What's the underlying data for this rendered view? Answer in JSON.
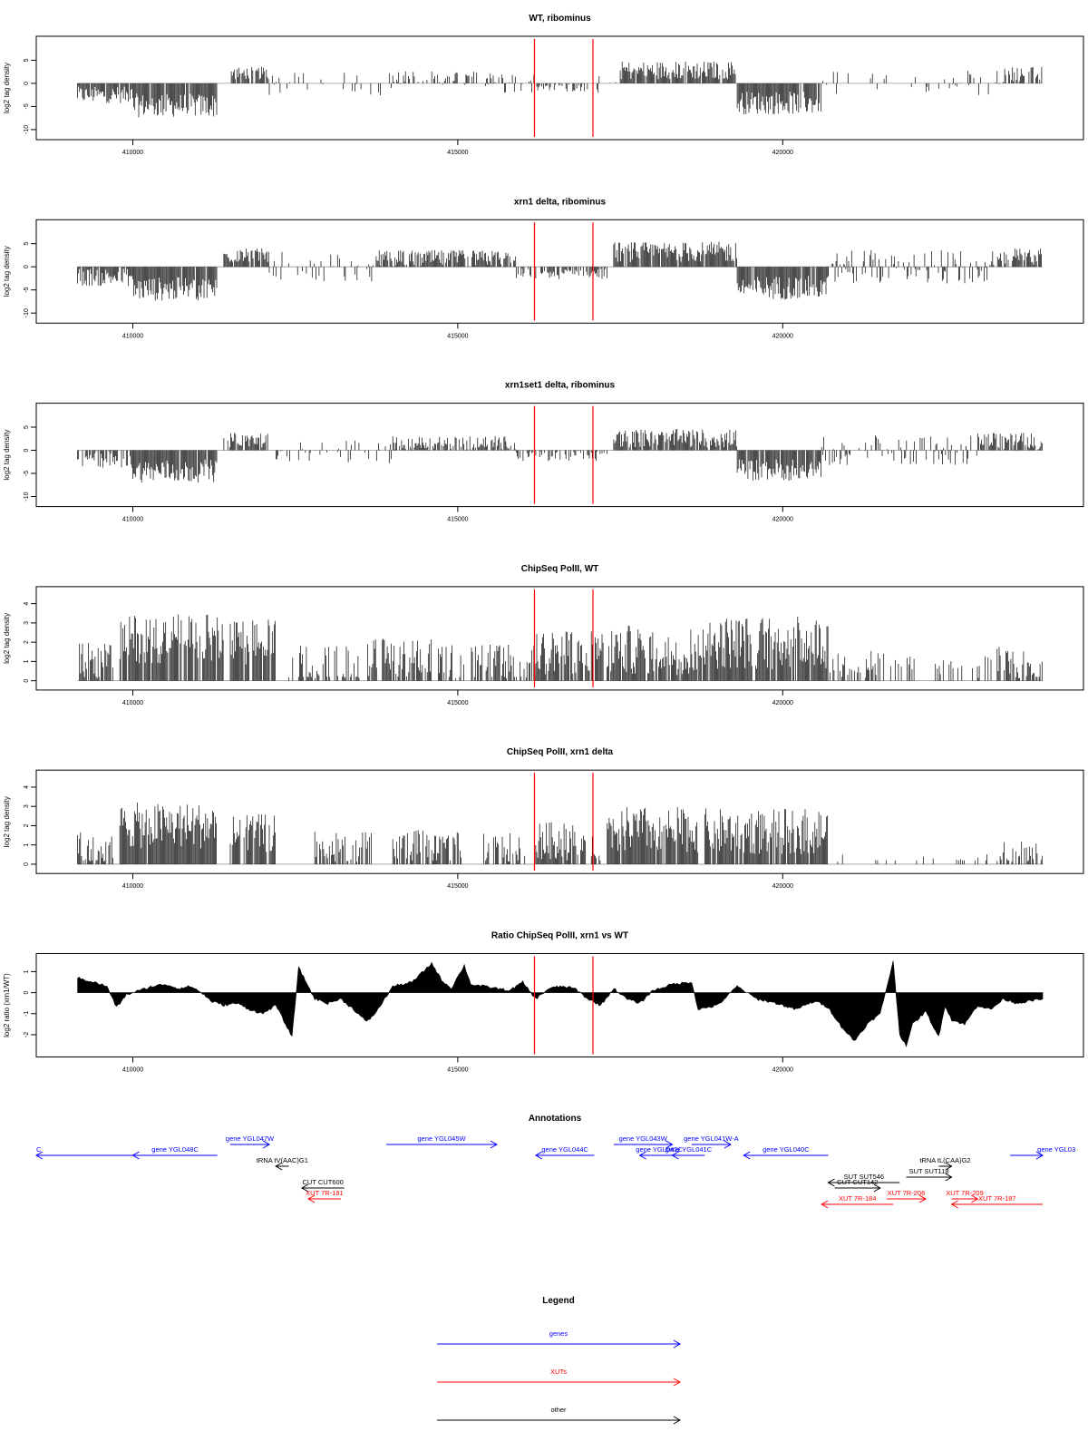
{
  "chart_data": [
    {
      "type": "bar",
      "title": "WT, ribominus",
      "ylabel": "log2 tag density",
      "xlim": [
        409100,
        424000
      ],
      "ylim": [
        -11,
        9
      ],
      "yticks": [
        -10,
        -5,
        0,
        5
      ],
      "xticks": [
        410000,
        415000,
        420000
      ],
      "grid": false,
      "markers": [
        416180,
        417080
      ],
      "segments": [
        {
          "start": 409150,
          "end": 410000,
          "mean": -2.5,
          "amp": 1.8,
          "p": 0.9
        },
        {
          "start": 410000,
          "end": 411300,
          "mean": -4.8,
          "amp": 2.6,
          "p": 0.95
        },
        {
          "start": 411500,
          "end": 412100,
          "mean": 2.2,
          "amp": 1.4,
          "p": 0.8
        },
        {
          "start": 412100,
          "end": 414000,
          "mean": 0,
          "amp": 1.6,
          "p": 0.18
        },
        {
          "start": 414000,
          "end": 415600,
          "mean": 1.0,
          "amp": 1.6,
          "p": 0.5
        },
        {
          "start": 415600,
          "end": 416200,
          "mean": 0,
          "amp": 1.2,
          "p": 0.3
        },
        {
          "start": 416200,
          "end": 417100,
          "mean": -0.8,
          "amp": 1.0,
          "p": 0.5
        },
        {
          "start": 417100,
          "end": 417500,
          "mean": 0,
          "amp": 1.2,
          "p": 0.2
        },
        {
          "start": 417500,
          "end": 419300,
          "mean": 2.8,
          "amp": 2.0,
          "p": 0.9
        },
        {
          "start": 419300,
          "end": 420600,
          "mean": -4.2,
          "amp": 2.5,
          "p": 0.95
        },
        {
          "start": 420600,
          "end": 423400,
          "mean": 0,
          "amp": 1.6,
          "p": 0.18
        },
        {
          "start": 423400,
          "end": 424000,
          "mean": 2.0,
          "amp": 1.6,
          "p": 0.6
        }
      ]
    },
    {
      "type": "bar",
      "title": "xrn1 delta, ribominus",
      "ylabel": "log2 tag density",
      "xlim": [
        409100,
        424000
      ],
      "ylim": [
        -11,
        9
      ],
      "yticks": [
        -10,
        -5,
        0,
        5
      ],
      "xticks": [
        410000,
        415000,
        420000
      ],
      "grid": false,
      "markers": [
        416180,
        417080
      ],
      "segments": [
        {
          "start": 409150,
          "end": 410000,
          "mean": -2.2,
          "amp": 2.0,
          "p": 0.9
        },
        {
          "start": 410000,
          "end": 411300,
          "mean": -4.8,
          "amp": 2.6,
          "p": 0.95
        },
        {
          "start": 411400,
          "end": 412100,
          "mean": 2.4,
          "amp": 1.6,
          "p": 0.85
        },
        {
          "start": 412100,
          "end": 413700,
          "mean": 0,
          "amp": 1.8,
          "p": 0.3
        },
        {
          "start": 413700,
          "end": 415900,
          "mean": 1.8,
          "amp": 1.8,
          "p": 0.85
        },
        {
          "start": 415900,
          "end": 417300,
          "mean": -1.5,
          "amp": 1.2,
          "p": 0.7
        },
        {
          "start": 417400,
          "end": 419300,
          "mean": 3.2,
          "amp": 2.2,
          "p": 0.95
        },
        {
          "start": 419300,
          "end": 420700,
          "mean": -4.5,
          "amp": 2.6,
          "p": 0.95
        },
        {
          "start": 420700,
          "end": 423200,
          "mean": 0.2,
          "amp": 2.0,
          "p": 0.55
        },
        {
          "start": 423200,
          "end": 424000,
          "mean": 2.2,
          "amp": 1.8,
          "p": 0.8
        }
      ]
    },
    {
      "type": "bar",
      "title": "xrn1set1 delta, ribominus",
      "ylabel": "log2 tag density",
      "xlim": [
        409100,
        424000
      ],
      "ylim": [
        -11,
        9
      ],
      "yticks": [
        -10,
        -5,
        0,
        5
      ],
      "xticks": [
        410000,
        415000,
        420000
      ],
      "grid": false,
      "markers": [
        416180,
        417080
      ],
      "segments": [
        {
          "start": 409150,
          "end": 410000,
          "mean": -2.0,
          "amp": 2.0,
          "p": 0.75
        },
        {
          "start": 410000,
          "end": 411300,
          "mean": -4.5,
          "amp": 2.5,
          "p": 0.95
        },
        {
          "start": 411400,
          "end": 412100,
          "mean": 2.2,
          "amp": 1.6,
          "p": 0.8
        },
        {
          "start": 412100,
          "end": 414000,
          "mean": 0,
          "amp": 1.6,
          "p": 0.25
        },
        {
          "start": 414000,
          "end": 415900,
          "mean": 1.5,
          "amp": 1.6,
          "p": 0.75
        },
        {
          "start": 415900,
          "end": 417300,
          "mean": -1.2,
          "amp": 1.2,
          "p": 0.55
        },
        {
          "start": 417400,
          "end": 419300,
          "mean": 2.6,
          "amp": 2.0,
          "p": 0.9
        },
        {
          "start": 419300,
          "end": 420600,
          "mean": -4.2,
          "amp": 2.4,
          "p": 0.95
        },
        {
          "start": 420600,
          "end": 423000,
          "mean": 0,
          "amp": 1.8,
          "p": 0.45
        },
        {
          "start": 423000,
          "end": 424000,
          "mean": 1.8,
          "amp": 2.0,
          "p": 0.75
        }
      ]
    },
    {
      "type": "bar",
      "title": "ChipSeq PolII, WT",
      "ylabel": "log2 tag density",
      "xlim": [
        409100,
        424000
      ],
      "ylim": [
        -0.2,
        4.6
      ],
      "yticks": [
        0,
        1,
        2,
        3,
        4
      ],
      "xticks": [
        410000,
        415000,
        420000
      ],
      "grid": false,
      "markers": [
        416180,
        417080
      ],
      "segments": [
        {
          "start": 409150,
          "end": 409700,
          "mean": 1.0,
          "amp": 1.0,
          "p": 0.7
        },
        {
          "start": 409800,
          "end": 411400,
          "mean": 2.2,
          "amp": 1.3,
          "p": 0.9
        },
        {
          "start": 411500,
          "end": 412200,
          "mean": 2.0,
          "amp": 1.2,
          "p": 0.85
        },
        {
          "start": 412400,
          "end": 413500,
          "mean": 0.9,
          "amp": 1.0,
          "p": 0.6
        },
        {
          "start": 413600,
          "end": 414600,
          "mean": 1.2,
          "amp": 1.0,
          "p": 0.7
        },
        {
          "start": 414700,
          "end": 416200,
          "mean": 0.9,
          "amp": 1.0,
          "p": 0.6
        },
        {
          "start": 416200,
          "end": 417100,
          "mean": 1.5,
          "amp": 1.2,
          "p": 0.85
        },
        {
          "start": 417100,
          "end": 418700,
          "mean": 1.6,
          "amp": 1.3,
          "p": 0.85
        },
        {
          "start": 418700,
          "end": 420700,
          "mean": 2.0,
          "amp": 1.4,
          "p": 0.9
        },
        {
          "start": 420700,
          "end": 421600,
          "mean": 0.9,
          "amp": 0.8,
          "p": 0.45
        },
        {
          "start": 421600,
          "end": 423300,
          "mean": 0.7,
          "amp": 0.6,
          "p": 0.2
        },
        {
          "start": 423300,
          "end": 424000,
          "mean": 0.9,
          "amp": 0.9,
          "p": 0.6
        }
      ]
    },
    {
      "type": "bar",
      "title": "ChipSeq PolII, xrn1 delta",
      "ylabel": "log2 tag density",
      "xlim": [
        409100,
        424000
      ],
      "ylim": [
        -0.2,
        4.6
      ],
      "yticks": [
        0,
        1,
        2,
        3,
        4
      ],
      "xticks": [
        410000,
        415000,
        420000
      ],
      "grid": false,
      "markers": [
        416180,
        417080
      ],
      "segments": [
        {
          "start": 409150,
          "end": 409700,
          "mean": 0.8,
          "amp": 0.9,
          "p": 0.7
        },
        {
          "start": 409800,
          "end": 411300,
          "mean": 2.0,
          "amp": 1.2,
          "p": 0.95
        },
        {
          "start": 411500,
          "end": 412200,
          "mean": 1.6,
          "amp": 1.0,
          "p": 0.9
        },
        {
          "start": 412800,
          "end": 413700,
          "mean": 0.9,
          "amp": 0.8,
          "p": 0.7
        },
        {
          "start": 414000,
          "end": 415100,
          "mean": 0.9,
          "amp": 0.9,
          "p": 0.7
        },
        {
          "start": 415400,
          "end": 416100,
          "mean": 0.8,
          "amp": 0.8,
          "p": 0.6
        },
        {
          "start": 416200,
          "end": 417200,
          "mean": 1.2,
          "amp": 1.0,
          "p": 0.85
        },
        {
          "start": 417300,
          "end": 418700,
          "mean": 1.8,
          "amp": 1.2,
          "p": 0.95
        },
        {
          "start": 418800,
          "end": 420700,
          "mean": 1.7,
          "amp": 1.2,
          "p": 0.95
        },
        {
          "start": 420800,
          "end": 423300,
          "mean": 0.2,
          "amp": 0.3,
          "p": 0.05
        },
        {
          "start": 423300,
          "end": 424000,
          "mean": 0.6,
          "amp": 0.6,
          "p": 0.6
        }
      ]
    },
    {
      "type": "area",
      "title": "Ratio ChipSeq PolII, xrn1 vs WT",
      "ylabel": "log2 ratio (xrn1/WT)",
      "xlim": [
        409100,
        424000
      ],
      "ylim": [
        -2.8,
        1.6
      ],
      "yticks": [
        -2,
        -1,
        0,
        1
      ],
      "xticks": [
        410000,
        415000,
        420000
      ],
      "grid": false,
      "markers": [
        416180,
        417080
      ],
      "x": [
        409150,
        409400,
        409600,
        409750,
        409900,
        410100,
        410300,
        410500,
        410700,
        410900,
        411100,
        411200,
        411400,
        411600,
        411800,
        412000,
        412200,
        412450,
        412550,
        412650,
        412800,
        413000,
        413200,
        413400,
        413600,
        413750,
        414000,
        414300,
        414600,
        414750,
        414900,
        415100,
        415200,
        415400,
        415600,
        415800,
        416000,
        416200,
        416400,
        416600,
        416800,
        417000,
        417200,
        417400,
        417600,
        417800,
        418000,
        418300,
        418600,
        418700,
        419000,
        419300,
        419600,
        419900,
        420200,
        420500,
        420700,
        420900,
        421100,
        421300,
        421500,
        421700,
        421800,
        421900,
        422000,
        422200,
        422400,
        422500,
        422600,
        422800,
        423000,
        423200,
        423400,
        423600,
        423800,
        424000
      ],
      "values": [
        0.7,
        0.5,
        0.3,
        -0.7,
        -0.1,
        0.1,
        0.3,
        0.4,
        0.2,
        0.3,
        -0.1,
        -0.4,
        -0.6,
        -0.5,
        -0.8,
        -1.0,
        -0.6,
        -2.1,
        1.2,
        0.6,
        -0.3,
        -0.5,
        -0.3,
        -0.8,
        -1.4,
        -0.9,
        0.3,
        0.5,
        1.4,
        0.6,
        0.2,
        1.3,
        0.4,
        0.3,
        0.2,
        0.1,
        0.5,
        -0.3,
        0.2,
        0.3,
        0.2,
        -0.3,
        -0.6,
        0.2,
        -0.3,
        -0.5,
        0.1,
        0.4,
        0.5,
        -0.8,
        -0.6,
        0.3,
        -0.3,
        -0.5,
        -0.8,
        -0.4,
        -0.7,
        -1.6,
        -2.3,
        -1.5,
        -1.0,
        1.5,
        -2.0,
        -2.5,
        -1.5,
        -0.9,
        -2.1,
        -0.6,
        -1.3,
        -1.5,
        -0.6,
        -0.8,
        -0.3,
        -0.5,
        -0.4,
        -0.3
      ]
    }
  ],
  "annotations": {
    "title": "Annotations",
    "features": [
      {
        "label": "C",
        "color": "#0000ff",
        "start": 409100,
        "end": 410000,
        "dir": "left",
        "lane": 1,
        "label_at": "start"
      },
      {
        "label": "gene YGL048C",
        "color": "#0000ff",
        "start": 410000,
        "end": 411300,
        "dir": "left",
        "lane": 1
      },
      {
        "label": "gene YGL047W",
        "color": "#0000ff",
        "start": 411500,
        "end": 412100,
        "dir": "right",
        "lane": 0
      },
      {
        "label": "tRNA tV(AAC)G1",
        "color": "#000000",
        "start": 412200,
        "end": 412400,
        "dir": "left",
        "lane": 2
      },
      {
        "label": "CUT CUT600",
        "color": "#000000",
        "start": 412600,
        "end": 413250,
        "dir": "left",
        "lane": 4
      },
      {
        "label": "XUT 7R-181",
        "color": "#ff0000",
        "start": 412700,
        "end": 413200,
        "dir": "left",
        "lane": 5
      },
      {
        "label": "gene YGL045W",
        "color": "#0000ff",
        "start": 413900,
        "end": 415600,
        "dir": "right",
        "lane": 0
      },
      {
        "label": "gene YGL044C",
        "color": "#0000ff",
        "start": 416200,
        "end": 417100,
        "dir": "left",
        "lane": 1
      },
      {
        "label": "gene YGL043W",
        "color": "#0000ff",
        "start": 417400,
        "end": 418300,
        "dir": "right",
        "lane": 0
      },
      {
        "label": "gene YGL042C",
        "color": "#0000ff",
        "start": 417800,
        "end": 418400,
        "dir": "left",
        "lane": 1
      },
      {
        "label": "gene YGL041C",
        "color": "#0000ff",
        "start": 418300,
        "end": 418800,
        "dir": "left",
        "lane": 1
      },
      {
        "label": "gene YGL041W-A",
        "color": "#0000ff",
        "start": 418600,
        "end": 419200,
        "dir": "right",
        "lane": 0
      },
      {
        "label": "gene YGL040C",
        "color": "#0000ff",
        "start": 419400,
        "end": 420700,
        "dir": "left",
        "lane": 1
      },
      {
        "label": "tRNA tL(CAA)G2",
        "color": "#000000",
        "start": 422400,
        "end": 422600,
        "dir": "right",
        "lane": 2
      },
      {
        "label": "SUT SUT118",
        "color": "#000000",
        "start": 421900,
        "end": 422600,
        "dir": "right",
        "lane": 3
      },
      {
        "label": "SUT SUT546",
        "color": "#000000",
        "start": 420700,
        "end": 421800,
        "dir": "left",
        "lane": 3.5
      },
      {
        "label": "CUT CUT142",
        "color": "#000000",
        "start": 420800,
        "end": 421500,
        "dir": "right",
        "lane": 4
      },
      {
        "label": "XUT 7R-206",
        "color": "#ff0000",
        "start": 421600,
        "end": 422200,
        "dir": "right",
        "lane": 5
      },
      {
        "label": "XUT 7R-184",
        "color": "#ff0000",
        "start": 420600,
        "end": 421700,
        "dir": "left",
        "lane": 5.5
      },
      {
        "label": "XUT 7R-209",
        "color": "#ff0000",
        "start": 422600,
        "end": 423000,
        "dir": "right",
        "lane": 5
      },
      {
        "label": "XUT 7R-187",
        "color": "#ff0000",
        "start": 422600,
        "end": 424000,
        "dir": "left",
        "lane": 5.5
      },
      {
        "label": "gene YGL03",
        "color": "#0000ff",
        "start": 423500,
        "end": 424000,
        "dir": "right",
        "lane": 1,
        "clip": true
      }
    ]
  },
  "legend": {
    "title": "Legend",
    "items": [
      {
        "label": "genes",
        "color": "#0000ff"
      },
      {
        "label": "XUTs",
        "color": "#ff0000"
      },
      {
        "label": "other",
        "color": "#000000"
      }
    ]
  },
  "colors": {
    "marker": "#ff0000",
    "bars": "#000000",
    "frame": "#000000"
  }
}
